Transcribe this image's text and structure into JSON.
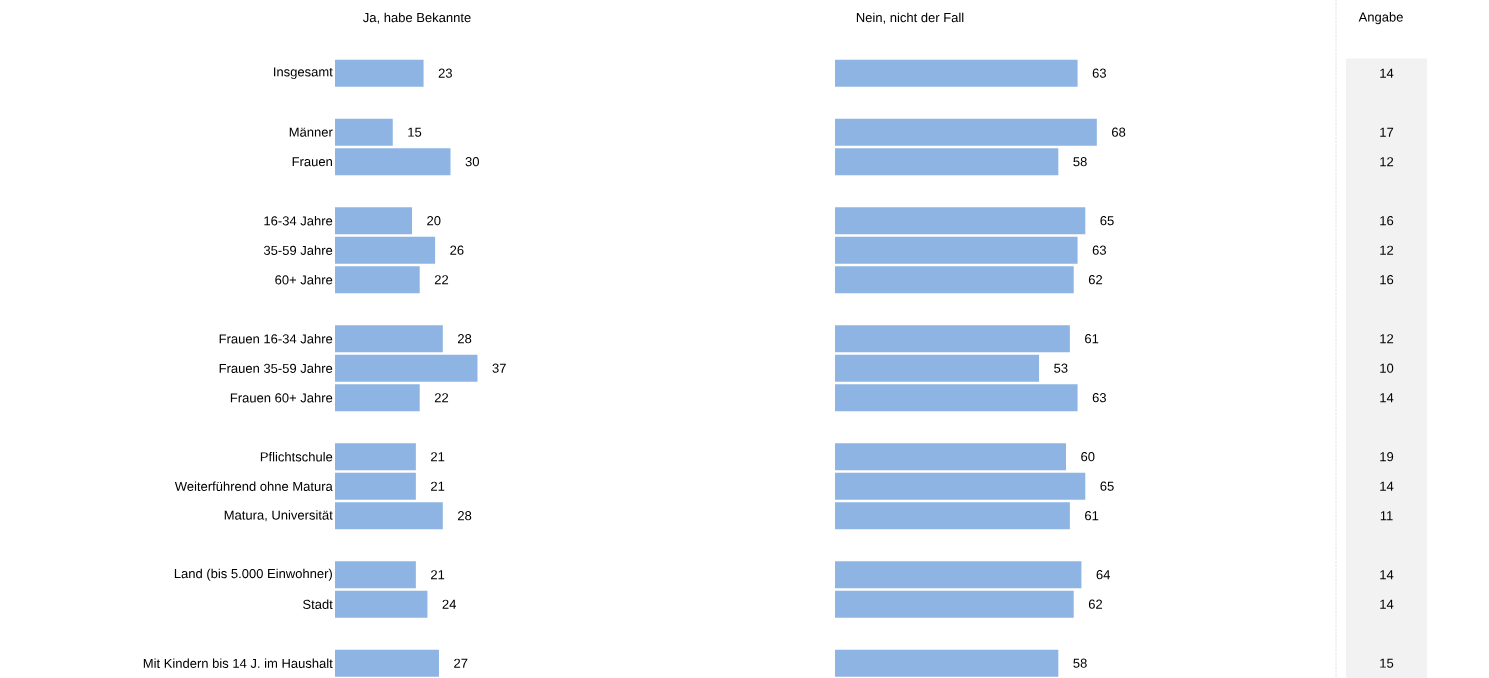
{
  "chart_data": [
    {
      "type": "bar",
      "orientation": "horizontal",
      "title": "Ja, habe Bekannte",
      "tick_labels": "y",
      "data_labels": true,
      "color": "#8db4e2",
      "categories": [
        "Insgesamt",
        null,
        "Männer",
        "Frauen",
        null,
        "16-34 Jahre",
        "35-59 Jahre",
        "60+ Jahre",
        null,
        "Frauen 16-34 Jahre",
        "Frauen 35-59 Jahre",
        "Frauen 60+ Jahre",
        null,
        "Pflichtschule",
        "Weiterführend ohne Matura",
        "Matura, Universität",
        null,
        "Land (bis 5.000 Einwohner)",
        "Stadt",
        null,
        "Mit Kindern bis 14 J. im Haushalt"
      ],
      "values": [
        23,
        null,
        15,
        30,
        null,
        20,
        26,
        22,
        null,
        28,
        37,
        22,
        null,
        21,
        21,
        28,
        null,
        21,
        24,
        null,
        27
      ]
    },
    {
      "type": "bar",
      "orientation": "horizontal",
      "title": "Nein, nicht der Fall",
      "tick_labels": false,
      "data_labels": true,
      "color": "#8db4e2",
      "categories": [
        null,
        null,
        null,
        null,
        null,
        null,
        null,
        null,
        null,
        null,
        null,
        null,
        null,
        null,
        null,
        null,
        null,
        null,
        null,
        null,
        null
      ],
      "values": [
        63,
        null,
        68,
        58,
        null,
        65,
        63,
        62,
        null,
        61,
        53,
        63,
        null,
        60,
        65,
        61,
        null,
        64,
        62,
        null,
        58
      ]
    },
    {
      "type": "other",
      "title": "Angabe",
      "data_labels": true,
      "values": [
        14,
        null,
        17,
        12,
        null,
        16,
        12,
        16,
        null,
        12,
        10,
        14,
        null,
        19,
        14,
        11,
        null,
        14,
        14,
        null,
        15
      ]
    }
  ]
}
